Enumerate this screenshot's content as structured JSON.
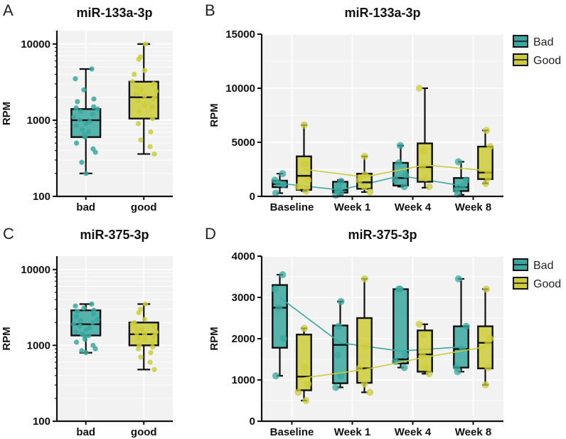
{
  "colors": {
    "bad": "#3aa8a0",
    "good": "#cccc3a",
    "bg": "#f2f2f2",
    "grid": "#ffffff"
  },
  "chart_data": [
    {
      "id": "A",
      "panel_label": "A",
      "type": "box",
      "title": "miR-133a-3p",
      "ylabel": "RPM",
      "yscale": "log",
      "ylim": [
        100,
        15000
      ],
      "yticks": [
        100,
        1000,
        10000
      ],
      "ytick_labels": [
        "100",
        "1000",
        "10000"
      ],
      "categories": [
        "bad",
        "good"
      ],
      "boxes": [
        {
          "q1": 600,
          "median": 1000,
          "q3": 1400,
          "min": 200,
          "max": 4700
        },
        {
          "q1": 1050,
          "median": 2000,
          "q3": 3200,
          "min": 360,
          "max": 10000
        }
      ],
      "points": [
        [
          4700,
          3500,
          2500,
          1900,
          1750,
          1500,
          1450,
          1400,
          1300,
          1200,
          1100,
          1000,
          950,
          900,
          850,
          750,
          700,
          650,
          600,
          500,
          420,
          380,
          280,
          200
        ],
        [
          10000,
          6800,
          6300,
          4500,
          4000,
          3200,
          3000,
          2700,
          2500,
          2400,
          2200,
          2100,
          2000,
          1900,
          1800,
          1600,
          1500,
          1300,
          1050,
          900,
          700,
          550,
          450,
          360
        ]
      ]
    },
    {
      "id": "B",
      "panel_label": "B",
      "type": "box",
      "title": "miR-133a-3p",
      "ylabel": "RPM",
      "yscale": "linear",
      "ylim": [
        0,
        15000
      ],
      "yticks": [
        0,
        5000,
        10000,
        15000
      ],
      "ytick_labels": [
        "0",
        "5000",
        "10000",
        "15000"
      ],
      "categories": [
        "Baseline",
        "Week 1",
        "Week 4",
        "Week 8"
      ],
      "legend": [
        "Bad",
        "Good"
      ],
      "series": [
        {
          "name": "Bad",
          "color_key": "bad",
          "boxes": [
            {
              "q1": 850,
              "median": 1150,
              "q3": 1450,
              "min": 300,
              "max": 2100
            },
            {
              "q1": 350,
              "median": 600,
              "q3": 1350,
              "min": 100,
              "max": 1500
            },
            {
              "q1": 1000,
              "median": 1700,
              "q3": 3100,
              "min": 900,
              "max": 4700
            },
            {
              "q1": 500,
              "median": 850,
              "q3": 1700,
              "min": 150,
              "max": 3200
            }
          ],
          "points": [
            [
              2100,
              1500,
              1200,
              1100,
              300
            ],
            [
              1400,
              900,
              500,
              300,
              100
            ],
            [
              4700,
              3100,
              2000,
              1500,
              900
            ],
            [
              3200,
              1500,
              900,
              600,
              200
            ]
          ],
          "means": [
            1200,
            600,
            1900,
            1000
          ]
        },
        {
          "name": "Good",
          "color_key": "good",
          "boxes": [
            {
              "q1": 600,
              "median": 1900,
              "q3": 3700,
              "min": 500,
              "max": 6600
            },
            {
              "q1": 700,
              "median": 1300,
              "q3": 2100,
              "min": 400,
              "max": 3700
            },
            {
              "q1": 1350,
              "median": 2700,
              "q3": 4900,
              "min": 800,
              "max": 10000
            },
            {
              "q1": 1600,
              "median": 2200,
              "q3": 4600,
              "min": 1200,
              "max": 6100
            }
          ],
          "points": [
            [
              6600,
              3000,
              1500,
              900,
              500
            ],
            [
              3700,
              2000,
              1500,
              900,
              400
            ],
            [
              10000,
              4200,
              2700,
              1700,
              900
            ],
            [
              6100,
              4600,
              2200,
              1700,
              1200
            ]
          ],
          "means": [
            2500,
            1800,
            2900,
            2400
          ]
        }
      ]
    },
    {
      "id": "C",
      "panel_label": "C",
      "type": "box",
      "title": "miR-375-3p",
      "ylabel": "RPM",
      "yscale": "log",
      "ylim": [
        100,
        15000
      ],
      "yticks": [
        100,
        1000,
        10000
      ],
      "ytick_labels": [
        "100",
        "1000",
        "10000"
      ],
      "categories": [
        "bad",
        "good"
      ],
      "boxes": [
        {
          "q1": 1350,
          "median": 1900,
          "q3": 2900,
          "min": 800,
          "max": 3500
        },
        {
          "q1": 1000,
          "median": 1400,
          "q3": 2000,
          "min": 480,
          "max": 3500
        }
      ],
      "points": [
        [
          3500,
          3300,
          3100,
          2900,
          2800,
          2600,
          2400,
          2200,
          2100,
          2000,
          1900,
          1800,
          1700,
          1600,
          1500,
          1400,
          1350,
          1300,
          1200,
          1100,
          1000,
          900,
          850,
          800
        ],
        [
          3500,
          3000,
          2700,
          2200,
          2000,
          1900,
          1800,
          1700,
          1600,
          1500,
          1450,
          1400,
          1350,
          1300,
          1250,
          1200,
          1100,
          1000,
          950,
          900,
          800,
          700,
          600,
          480
        ]
      ]
    },
    {
      "id": "D",
      "panel_label": "D",
      "type": "box",
      "title": "miR-375-3p",
      "ylabel": "RPM",
      "yscale": "linear",
      "ylim": [
        0,
        4000
      ],
      "yticks": [
        0,
        1000,
        2000,
        3000,
        4000
      ],
      "ytick_labels": [
        "0",
        "1000",
        "2000",
        "3000",
        "4000"
      ],
      "categories": [
        "Baseline",
        "Week 1",
        "Week 4",
        "Week 8"
      ],
      "legend": [
        "Bad",
        "Good"
      ],
      "series": [
        {
          "name": "Bad",
          "color_key": "bad",
          "boxes": [
            {
              "q1": 1780,
              "median": 2750,
              "q3": 3300,
              "min": 1100,
              "max": 3550
            },
            {
              "q1": 920,
              "median": 1850,
              "q3": 2320,
              "min": 820,
              "max": 2900
            },
            {
              "q1": 1400,
              "median": 1500,
              "q3": 3200,
              "min": 1300,
              "max": 3200
            },
            {
              "q1": 1300,
              "median": 1750,
              "q3": 2300,
              "min": 1200,
              "max": 3450
            }
          ],
          "points": [
            [
              3550,
              3200,
              2750,
              2000,
              1100
            ],
            [
              2900,
              2300,
              1600,
              1100,
              820
            ],
            [
              3200,
              3200,
              1600,
              1450,
              1300
            ],
            [
              3450,
              2300,
              1750,
              1300,
              1200
            ]
          ],
          "means": [
            3000,
            1900,
            1700,
            1800
          ]
        },
        {
          "name": "Good",
          "color_key": "good",
          "boxes": [
            {
              "q1": 750,
              "median": 1080,
              "q3": 2100,
              "min": 500,
              "max": 2250
            },
            {
              "q1": 930,
              "median": 1280,
              "q3": 2500,
              "min": 700,
              "max": 3450
            },
            {
              "q1": 1200,
              "median": 1620,
              "q3": 2200,
              "min": 1150,
              "max": 2350
            },
            {
              "q1": 1280,
              "median": 1900,
              "q3": 2300,
              "min": 880,
              "max": 3200
            }
          ],
          "points": [
            [
              2250,
              1300,
              900,
              700,
              500
            ],
            [
              3450,
              1800,
              1280,
              900,
              700
            ],
            [
              2350,
              2100,
              1600,
              1300,
              1150
            ],
            [
              3200,
              2000,
              1900,
              1300,
              880
            ]
          ],
          "means": [
            1050,
            1250,
            1550,
            1800
          ]
        }
      ]
    }
  ]
}
